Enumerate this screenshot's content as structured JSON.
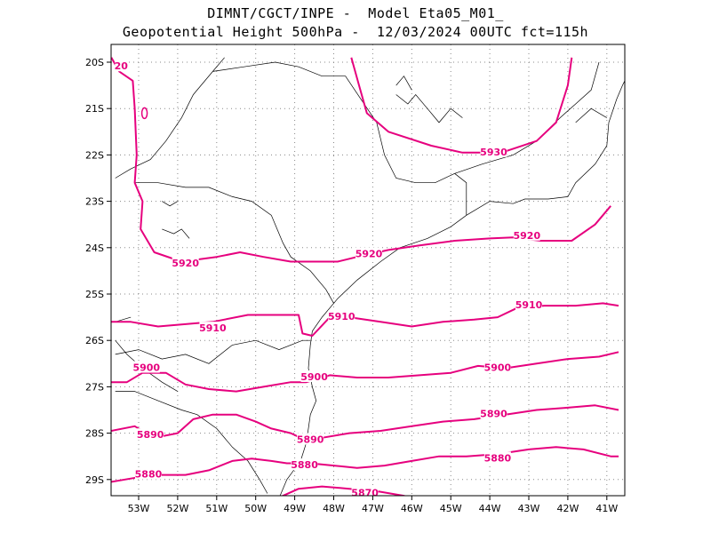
{
  "title": {
    "line1": "DIMNT/CGCT/INPE -  Model Eta05_M01_",
    "line2": "Geopotential Height 500hPa -  12/03/2024 00UTC fct=115h"
  },
  "colors": {
    "contour": "#e6007e",
    "coast": "#000000",
    "grid": "#888888"
  },
  "axes": {
    "lat_labels": [
      "20S",
      "21S",
      "22S",
      "23S",
      "24S",
      "25S",
      "26S",
      "27S",
      "28S",
      "29S"
    ],
    "lon_labels": [
      "53W",
      "52W",
      "51W",
      "50W",
      "49W",
      "48W",
      "47W",
      "46W",
      "45W",
      "44W",
      "43W",
      "42W",
      "41W"
    ]
  },
  "contour_labels": [
    {
      "text": "20",
      "lon": -53.45,
      "lat": -20.1
    },
    {
      "text": "5930",
      "lon": -43.9,
      "lat": -21.95
    },
    {
      "text": "5920",
      "lon": -51.8,
      "lat": -24.35
    },
    {
      "text": "5920",
      "lon": -47.1,
      "lat": -24.15
    },
    {
      "text": "5920",
      "lon": -43.05,
      "lat": -23.75
    },
    {
      "text": "5910",
      "lon": -51.1,
      "lat": -25.75
    },
    {
      "text": "5910",
      "lon": -47.8,
      "lat": -25.5
    },
    {
      "text": "5910",
      "lon": -43.0,
      "lat": -25.25
    },
    {
      "text": "5900",
      "lon": -52.8,
      "lat": -26.6
    },
    {
      "text": "5900",
      "lon": -48.5,
      "lat": -26.8
    },
    {
      "text": "5900",
      "lon": -43.8,
      "lat": -26.6
    },
    {
      "text": "5890",
      "lon": -52.7,
      "lat": -28.05
    },
    {
      "text": "5890",
      "lon": -48.6,
      "lat": -28.15
    },
    {
      "text": "5890",
      "lon": -43.9,
      "lat": -27.6
    },
    {
      "text": "5880",
      "lon": -52.75,
      "lat": -28.9
    },
    {
      "text": "5880",
      "lon": -48.75,
      "lat": -28.7
    },
    {
      "text": "5880",
      "lon": -43.8,
      "lat": -28.55
    },
    {
      "text": "5870",
      "lon": -47.2,
      "lat": -29.3
    }
  ]
}
